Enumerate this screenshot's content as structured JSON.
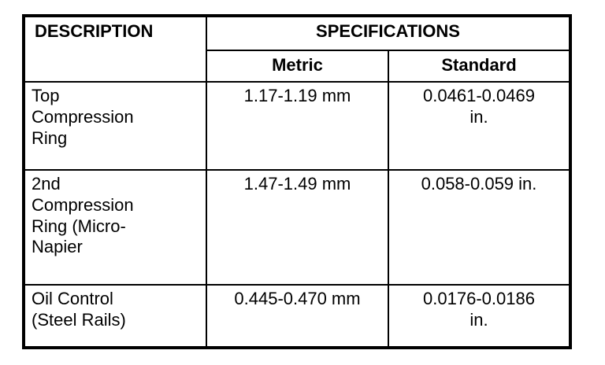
{
  "table": {
    "headers": {
      "description": "DESCRIPTION",
      "specifications": "SPECIFICATIONS",
      "metric": "Metric",
      "standard": "Standard"
    },
    "rows": [
      {
        "description": "Top Compression Ring",
        "metric": "1.17-1.19 mm",
        "standard": "0.0461-0.0469 in."
      },
      {
        "description": "2nd Compression Ring (Micro-Napier",
        "metric": "1.47-1.49 mm",
        "standard": "0.058-0.059 in."
      },
      {
        "description": "Oil Control (Steel Rails)",
        "metric": "0.445-0.470 mm",
        "standard": "0.0176-0.0186 in."
      }
    ],
    "colors": {
      "border": "#000000",
      "background": "#ffffff",
      "text": "#000000"
    }
  }
}
